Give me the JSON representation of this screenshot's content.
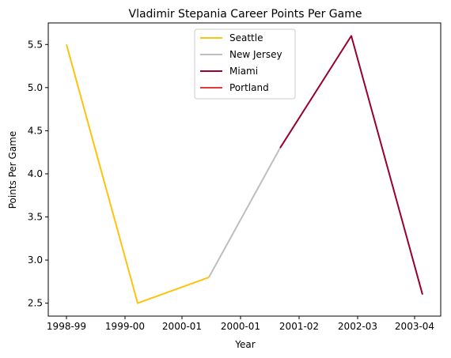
{
  "chart_data": {
    "type": "line",
    "title": "Vladimir Stepania Career Points Per Game",
    "xlabel": "Year",
    "ylabel": "Points Per Game",
    "x_ticks": [
      "1998-99",
      "1999-00",
      "2000-01",
      "2000-01",
      "2001-02",
      "2002-03",
      "2003-04"
    ],
    "ylim": [
      2.35,
      5.75
    ],
    "y_ticks": [
      2.5,
      3.0,
      3.5,
      4.0,
      4.5,
      5.0,
      5.5
    ],
    "y_tick_labels": [
      "2.5",
      "3.0",
      "3.5",
      "4.0",
      "4.5",
      "5.0",
      "5.5"
    ],
    "grid": false,
    "legend_position": "top-center",
    "series": [
      {
        "name": "Seattle",
        "color": "#FFC20E",
        "points": [
          {
            "x": "1998-99",
            "y": 5.5
          },
          {
            "x": "1999-00",
            "y": 2.5
          },
          {
            "x": "2000-01",
            "y": 2.8
          }
        ]
      },
      {
        "name": "New Jersey",
        "color": "#BEBEBE",
        "points": [
          {
            "x": "2000-01",
            "y": 2.8
          },
          {
            "x": "2001-02",
            "y": 4.3
          }
        ]
      },
      {
        "name": "Miami",
        "color": "#98002E",
        "points": [
          {
            "x": "2001-02",
            "y": 4.3
          },
          {
            "x": "2002-03",
            "y": 5.6
          },
          {
            "x": "2003-04",
            "y": 2.6
          }
        ]
      },
      {
        "name": "Portland",
        "color": "#E03A3E",
        "points": []
      }
    ]
  }
}
